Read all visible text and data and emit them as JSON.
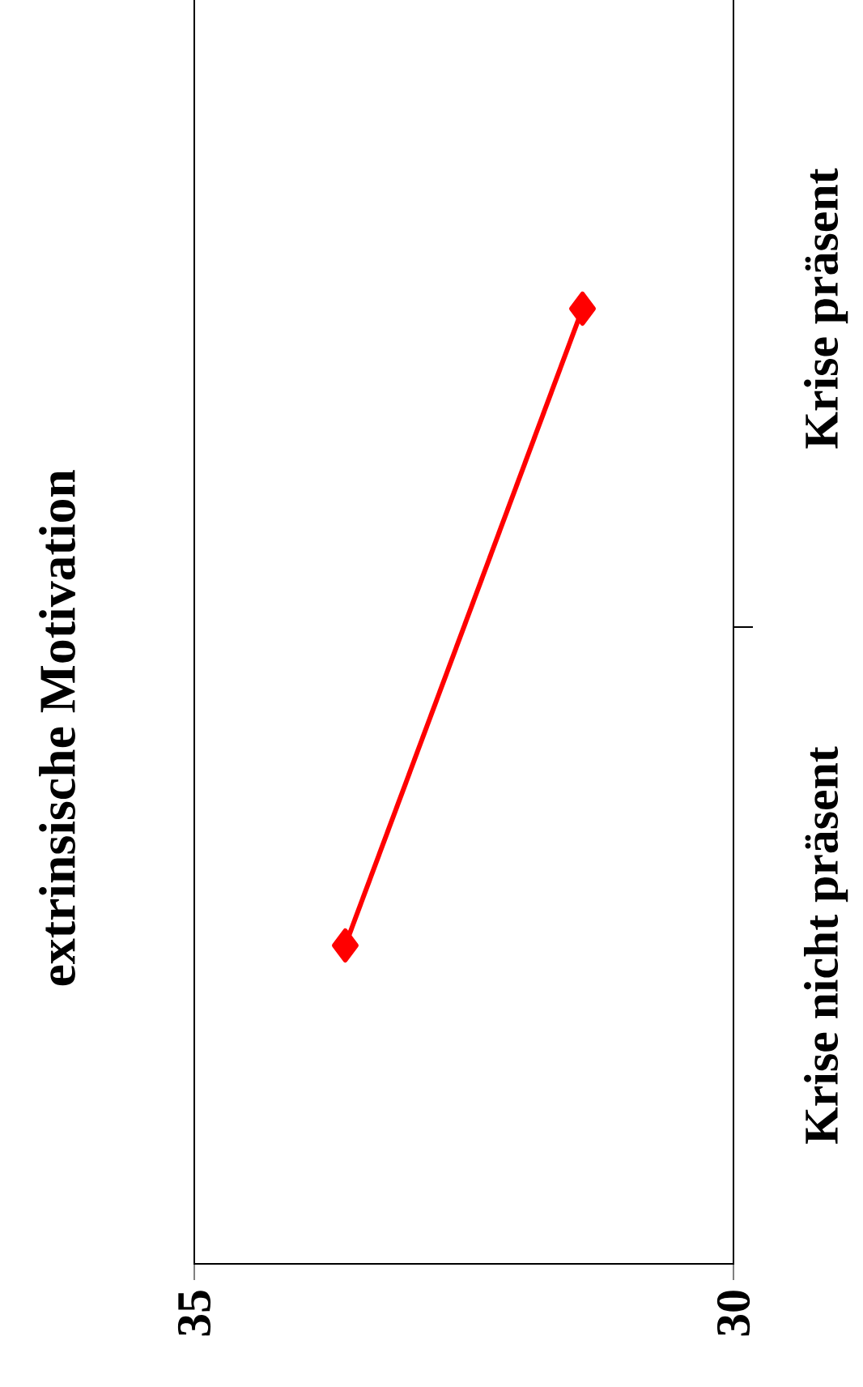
{
  "chart_data": {
    "type": "line",
    "orientation": "horizontal",
    "title": "extrinsische Motivation",
    "categories": [
      "Krise präsent",
      "Krise nicht präsent"
    ],
    "values": [
      31.4,
      33.6
    ],
    "color": "#ff0000",
    "marker": "diamond",
    "line_style": "solid",
    "xlim": [
      35,
      30
    ],
    "xticks": [
      35,
      30
    ],
    "grid": false
  }
}
